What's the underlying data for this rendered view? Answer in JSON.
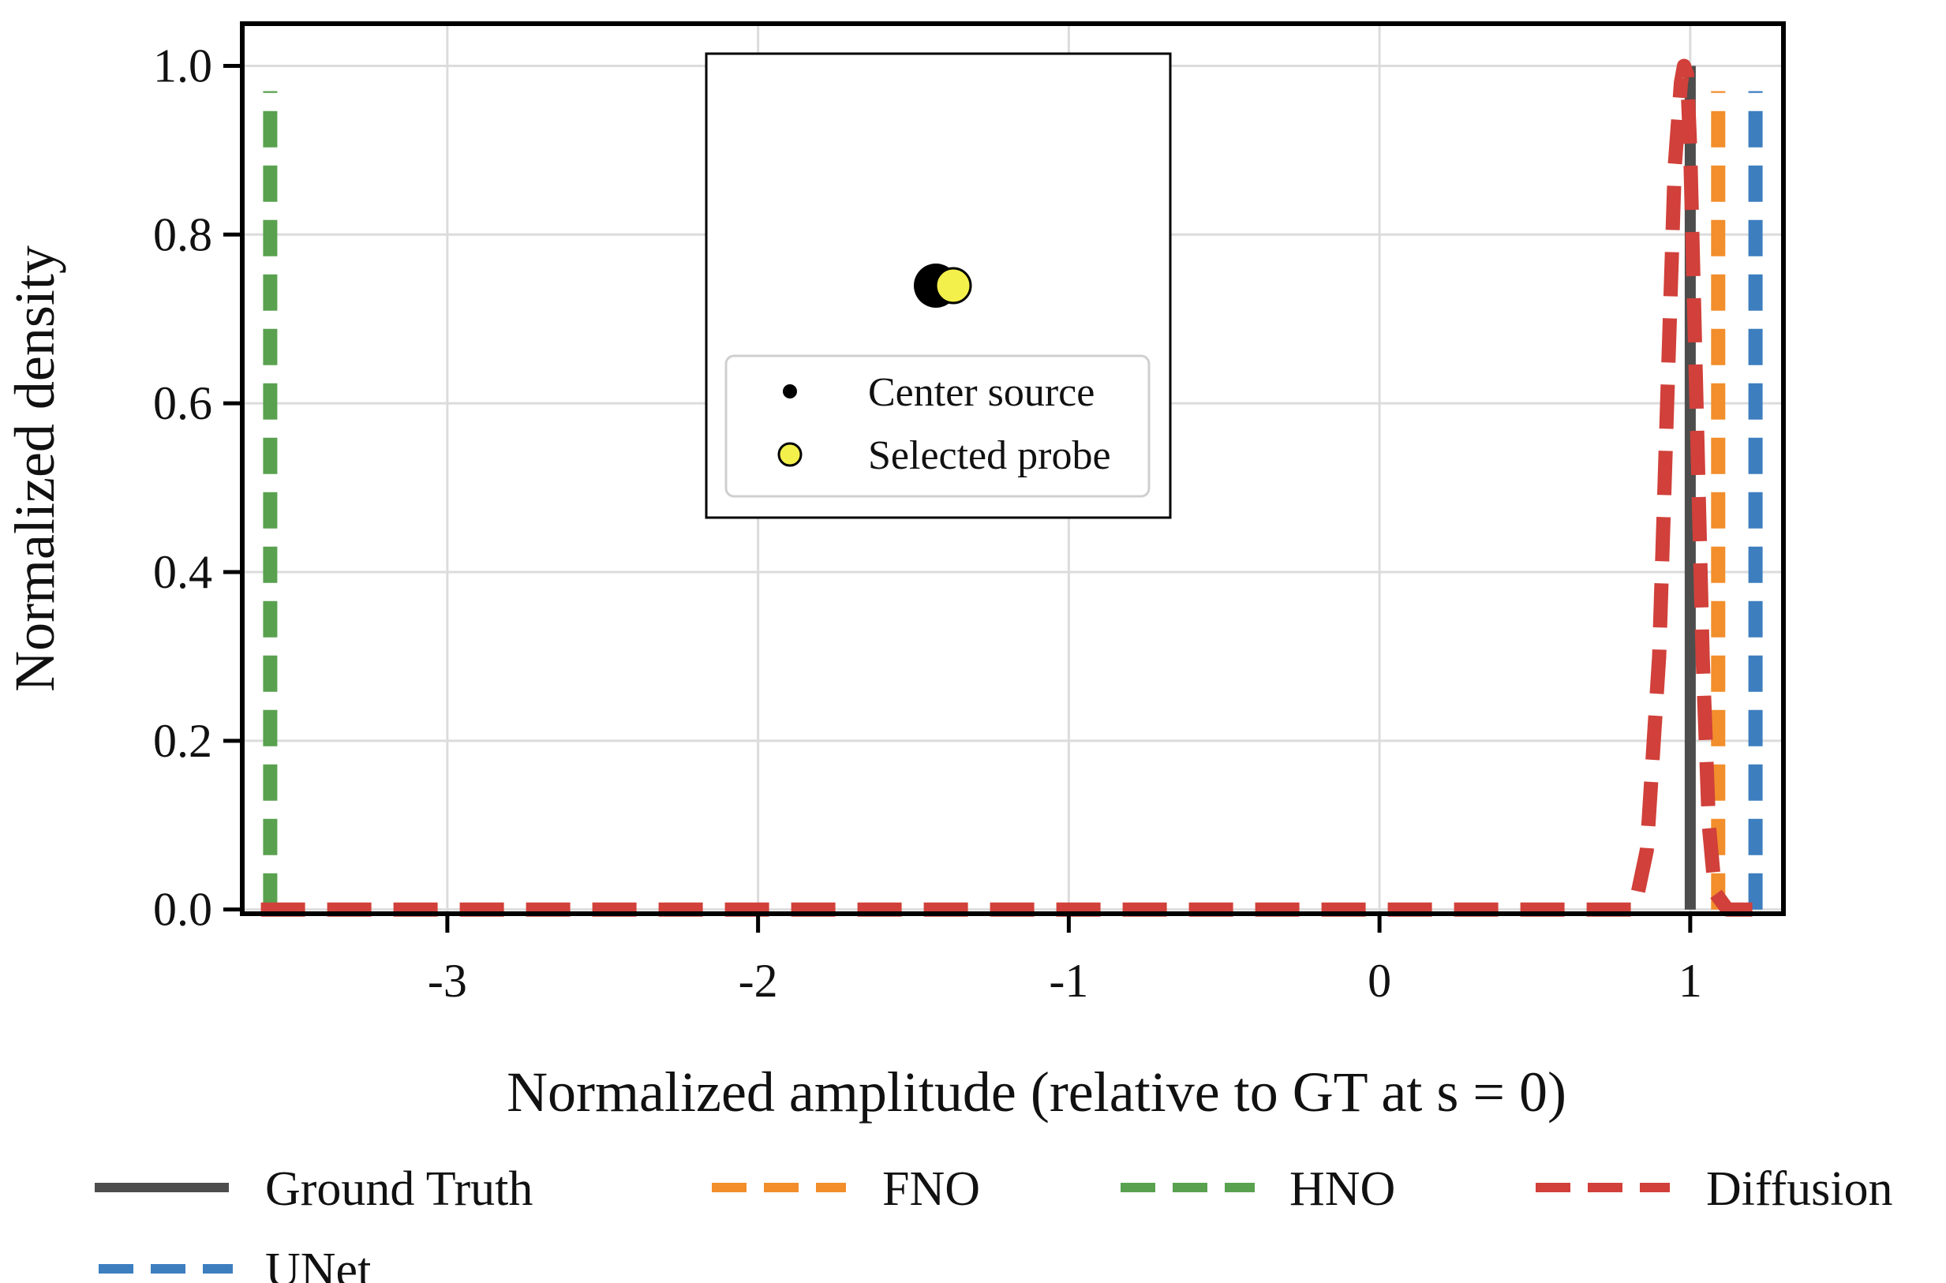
{
  "chart_data": {
    "type": "line",
    "title": "",
    "xlabel": "Normalized amplitude (relative to GT at s = 0)",
    "ylabel": "Normalized density",
    "xlim": [
      -3.66,
      1.3
    ],
    "ylim": [
      -0.005,
      1.05
    ],
    "xticks": [
      -3,
      -2,
      -1,
      0,
      1
    ],
    "xtick_labels": [
      "-3",
      "-2",
      "-1",
      "0",
      "1"
    ],
    "yticks": [
      0.0,
      0.2,
      0.4,
      0.6,
      0.8,
      1.0
    ],
    "ytick_labels": [
      "0.0",
      "0.2",
      "0.4",
      "0.6",
      "0.8",
      "1.0"
    ],
    "grid": true,
    "series": [
      {
        "name": "Ground Truth",
        "color": "#4d4d4d",
        "style": "solid",
        "x": [
          1.0,
          1.0
        ],
        "y": [
          0.0,
          1.0
        ]
      },
      {
        "name": "FNO",
        "color": "#f28e2b",
        "style": "dashed",
        "x": [
          1.09,
          1.09
        ],
        "y": [
          0.0,
          0.97
        ]
      },
      {
        "name": "HNO",
        "color": "#59a14f",
        "style": "dashed",
        "x": [
          -3.57,
          -3.57
        ],
        "y": [
          0.0,
          0.97
        ]
      },
      {
        "name": "Diffusion",
        "color": "#d1403a",
        "style": "dashed",
        "x": [
          -3.6,
          -2.5,
          -1.5,
          -0.5,
          0.6,
          0.82,
          0.86,
          0.9,
          0.93,
          0.95,
          0.97,
          0.98,
          0.99,
          1.0,
          1.02,
          1.04,
          1.06,
          1.08,
          1.12,
          1.2
        ],
        "y": [
          0.0,
          0.0,
          0.0,
          0.0,
          0.0,
          0.0,
          0.07,
          0.3,
          0.65,
          0.88,
          0.98,
          1.0,
          0.99,
          0.9,
          0.6,
          0.3,
          0.1,
          0.02,
          0.0,
          0.0
        ]
      },
      {
        "name": "UNet",
        "color": "#3d7ebf",
        "style": "dashed",
        "x": [
          1.21,
          1.21
        ],
        "y": [
          0.0,
          0.97
        ]
      }
    ],
    "legend": {
      "position": "bottom",
      "entries": [
        "Ground Truth",
        "FNO",
        "HNO",
        "Diffusion",
        "UNet"
      ]
    },
    "inset": {
      "center_marker_color": "#000000",
      "probe_marker_color": "#f4f04b",
      "legend": [
        {
          "label": "Center source",
          "marker": "dot-black"
        },
        {
          "label": "Selected probe",
          "marker": "dot-yellow"
        }
      ]
    }
  }
}
